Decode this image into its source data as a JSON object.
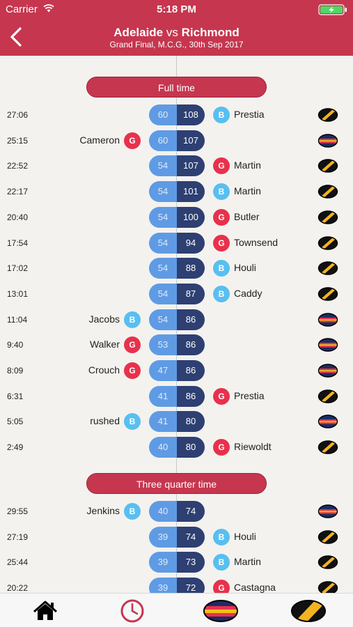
{
  "status_bar": {
    "carrier": "Carrier",
    "time": "5:18 PM"
  },
  "header": {
    "home_team": "Adelaide",
    "vs": "vs",
    "away_team": "Richmond",
    "subtitle": "Grand Final, M.C.G., 30th Sep 2017",
    "back_icon": "chevron-left-icon"
  },
  "colors": {
    "header": "#c6364f",
    "goal": "#e8314c",
    "behind": "#58bff0",
    "home_score": "#5f9be4",
    "away_score": "#2e3f72"
  },
  "periods": [
    {
      "label": "Full time",
      "events": [
        {
          "time": "27:06",
          "side": "away",
          "player": "Prestia",
          "type": "B",
          "home_score": "60",
          "away_score": "108"
        },
        {
          "time": "25:15",
          "side": "home",
          "player": "Cameron",
          "type": "G",
          "home_score": "60",
          "away_score": "107"
        },
        {
          "time": "22:52",
          "side": "away",
          "player": "Martin",
          "type": "G",
          "home_score": "54",
          "away_score": "107"
        },
        {
          "time": "22:17",
          "side": "away",
          "player": "Martin",
          "type": "B",
          "home_score": "54",
          "away_score": "101"
        },
        {
          "time": "20:40",
          "side": "away",
          "player": "Butler",
          "type": "G",
          "home_score": "54",
          "away_score": "100"
        },
        {
          "time": "17:54",
          "side": "away",
          "player": "Townsend",
          "type": "G",
          "home_score": "54",
          "away_score": "94"
        },
        {
          "time": "17:02",
          "side": "away",
          "player": "Houli",
          "type": "B",
          "home_score": "54",
          "away_score": "88"
        },
        {
          "time": "13:01",
          "side": "away",
          "player": "Caddy",
          "type": "B",
          "home_score": "54",
          "away_score": "87"
        },
        {
          "time": "11:04",
          "side": "home",
          "player": "Jacobs",
          "type": "B",
          "home_score": "54",
          "away_score": "86"
        },
        {
          "time": "9:40",
          "side": "home",
          "player": "Walker",
          "type": "G",
          "home_score": "53",
          "away_score": "86"
        },
        {
          "time": "8:09",
          "side": "home",
          "player": "Crouch",
          "type": "G",
          "home_score": "47",
          "away_score": "86"
        },
        {
          "time": "6:31",
          "side": "away",
          "player": "Prestia",
          "type": "G",
          "home_score": "41",
          "away_score": "86"
        },
        {
          "time": "5:05",
          "side": "home",
          "player": "rushed",
          "type": "B",
          "home_score": "41",
          "away_score": "80"
        },
        {
          "time": "2:49",
          "side": "away",
          "player": "Riewoldt",
          "type": "G",
          "home_score": "40",
          "away_score": "80"
        }
      ]
    },
    {
      "label": "Three quarter time",
      "events": [
        {
          "time": "29:55",
          "side": "home",
          "player": "Jenkins",
          "type": "B",
          "home_score": "40",
          "away_score": "74"
        },
        {
          "time": "27:19",
          "side": "away",
          "player": "Houli",
          "type": "B",
          "home_score": "39",
          "away_score": "74"
        },
        {
          "time": "25:44",
          "side": "away",
          "player": "Martin",
          "type": "B",
          "home_score": "39",
          "away_score": "73"
        },
        {
          "time": "20:22",
          "side": "away",
          "player": "Castagna",
          "type": "G",
          "home_score": "39",
          "away_score": "72"
        }
      ]
    }
  ],
  "tabbar": {
    "items": [
      {
        "name": "tab-home",
        "icon": "home-icon"
      },
      {
        "name": "tab-timeline",
        "icon": "clock-icon"
      },
      {
        "name": "tab-adelaide",
        "icon": "adelaide-guernsey-icon"
      },
      {
        "name": "tab-richmond",
        "icon": "richmond-guernsey-icon"
      }
    ]
  }
}
